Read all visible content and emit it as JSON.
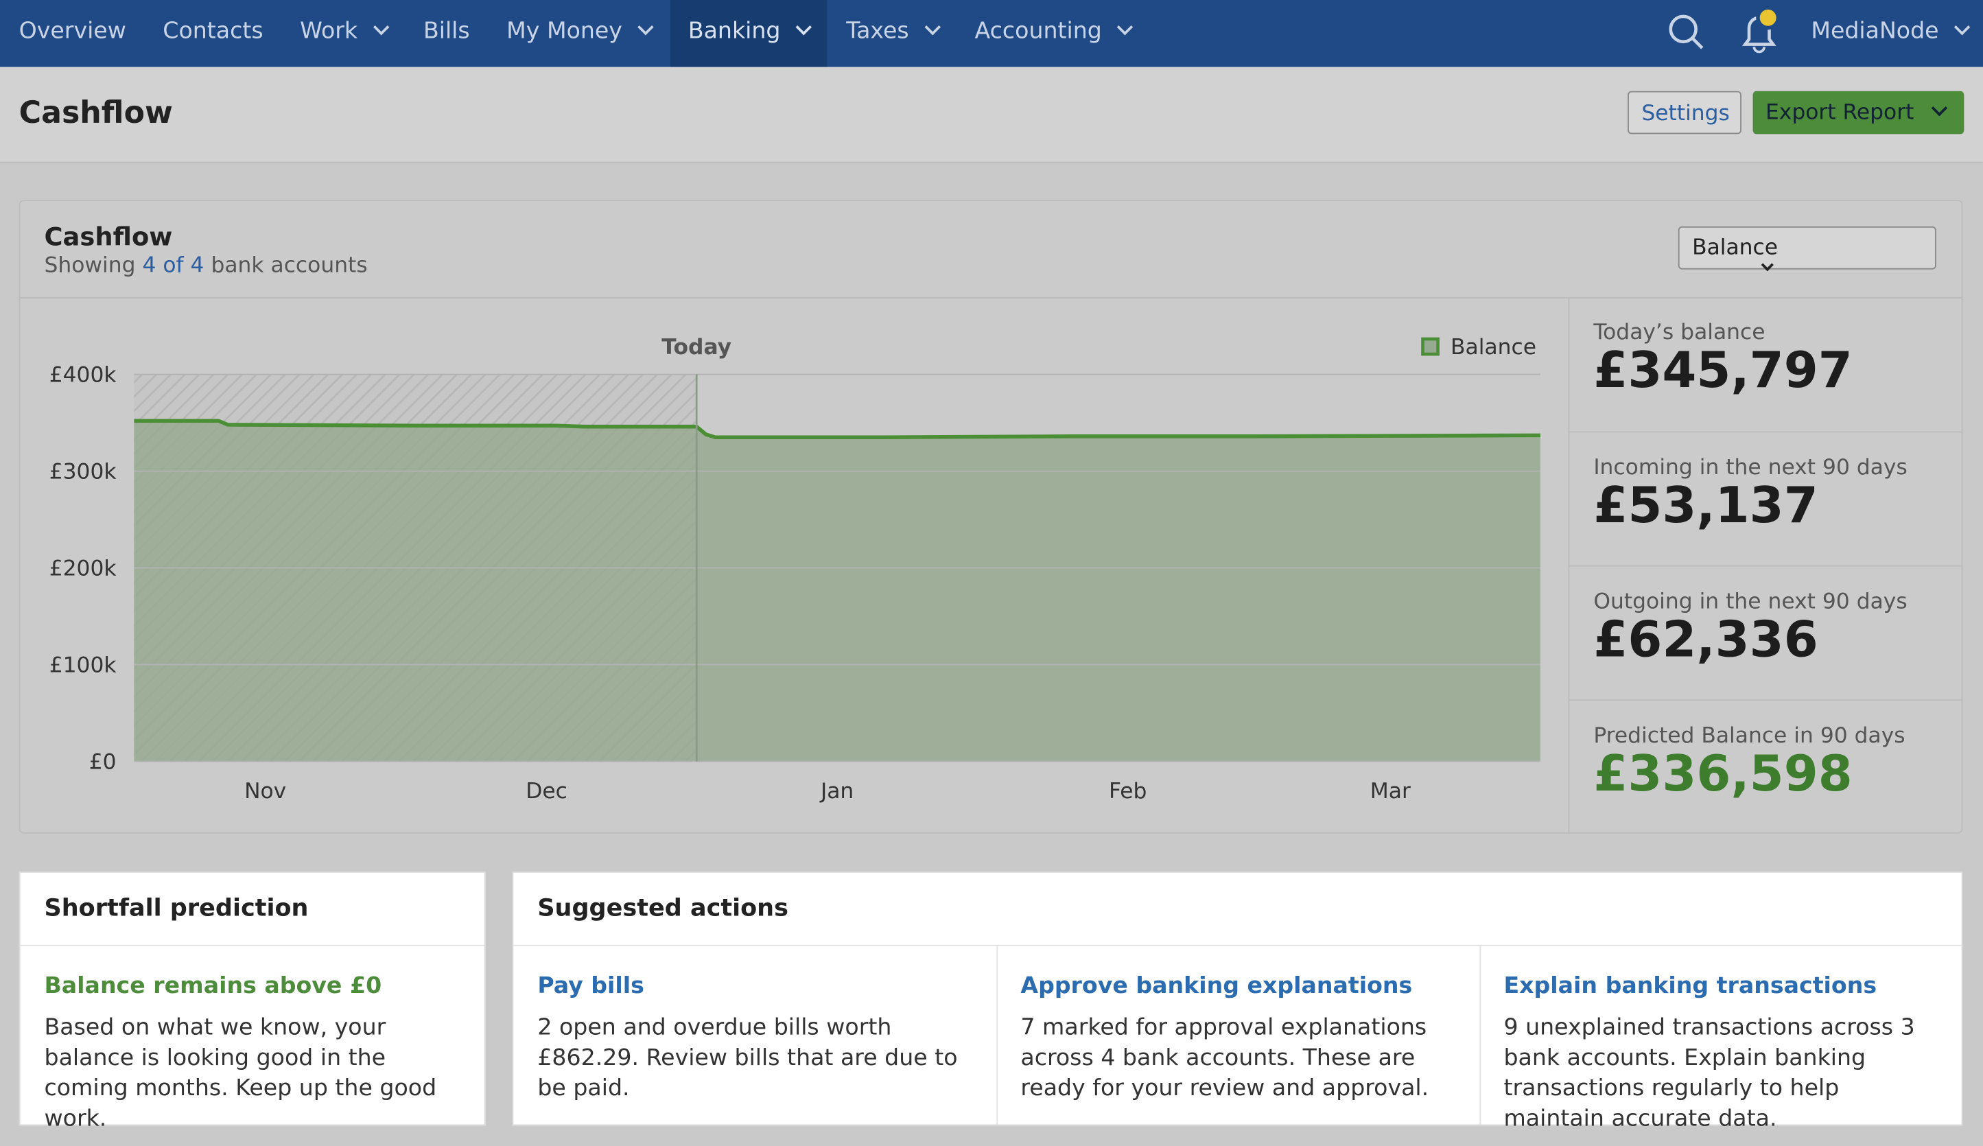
{
  "nav": {
    "items": [
      {
        "label": "Overview",
        "dropdown": false
      },
      {
        "label": "Contacts",
        "dropdown": false
      },
      {
        "label": "Work",
        "dropdown": true
      },
      {
        "label": "Bills",
        "dropdown": false
      },
      {
        "label": "My Money",
        "dropdown": true
      },
      {
        "label": "Banking",
        "dropdown": true,
        "active": true
      },
      {
        "label": "Taxes",
        "dropdown": true
      },
      {
        "label": "Accounting",
        "dropdown": true
      }
    ],
    "user": "MediaNode"
  },
  "page": {
    "title": "Cashflow",
    "settings": "Settings",
    "export": "Export Report"
  },
  "card": {
    "title": "Cashflow",
    "subtitle_prefix": "Showing",
    "subtitle_link": "4 of 4",
    "subtitle_suffix": "bank accounts",
    "select": "Balance"
  },
  "chart_data": {
    "type": "area",
    "series": [
      {
        "name": "Balance",
        "color": "#4a8f35",
        "x": [
          0,
          9,
          10,
          30,
          45,
          48,
          60,
          61,
          62,
          80,
          100,
          120,
          150
        ],
        "values": [
          352000,
          352000,
          348000,
          347000,
          347000,
          346000,
          346000,
          338000,
          335000,
          335000,
          336000,
          336000,
          337000
        ]
      }
    ],
    "xlim": [
      0,
      150
    ],
    "xticks": [
      {
        "value": 14,
        "label": "Nov"
      },
      {
        "value": 44,
        "label": "Dec"
      },
      {
        "value": 75,
        "label": "Jan"
      },
      {
        "value": 106,
        "label": "Feb"
      },
      {
        "value": 134,
        "label": "Mar"
      }
    ],
    "ylim": [
      0,
      400000
    ],
    "yticks": [
      {
        "value": 0,
        "label": "£0"
      },
      {
        "value": 100000,
        "label": "£100k"
      },
      {
        "value": 200000,
        "label": "£200k"
      },
      {
        "value": 300000,
        "label": "£300k"
      },
      {
        "value": 400000,
        "label": "£400k"
      }
    ],
    "grid": true,
    "today": {
      "x": 60,
      "label": "Today"
    }
  },
  "stats": [
    {
      "label": "Today’s balance",
      "value": "£345,797"
    },
    {
      "label": "Incoming in the next 90 days",
      "value": "£53,137"
    },
    {
      "label": "Outgoing in the next 90 days",
      "value": "£62,336"
    },
    {
      "label": "Predicted Balance in 90 days",
      "value": "£336,598",
      "highlight": true
    }
  ],
  "shortfall": {
    "title": "Shortfall prediction",
    "status": "Balance remains above £0",
    "text": "Based on what we know, your balance is looking good in the coming months. Keep up the good work."
  },
  "suggested": {
    "title": "Suggested actions",
    "items": [
      {
        "title": "Pay bills",
        "text": "2 open and overdue bills worth £862.29. Review bills that are due to be paid."
      },
      {
        "title": "Approve banking explanations",
        "text": "7 marked for approval explanations across 4 bank accounts. These are ready for your review and approval."
      },
      {
        "title": "Explain banking transactions",
        "text": "9 unexplained transactions across 3 bank accounts. Explain banking transactions regularly to help maintain accurate data."
      }
    ]
  }
}
